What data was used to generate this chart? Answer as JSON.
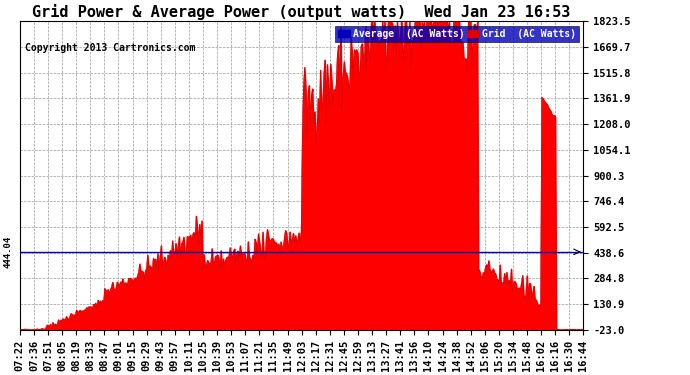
{
  "title": "Grid Power & Average Power (output watts)  Wed Jan 23 16:53",
  "copyright": "Copyright 2013 Cartronics.com",
  "ylabel_values": [
    1823.5,
    1669.7,
    1515.8,
    1361.9,
    1208.0,
    1054.1,
    900.3,
    746.4,
    592.5,
    438.6,
    284.8,
    130.9,
    -23.0
  ],
  "ymin": -23.0,
  "ymax": 1823.5,
  "avg_line_y": 444.04,
  "avg_line_label": "444.04",
  "legend_average_label": "Average  (AC Watts)",
  "legend_grid_label": "Grid  (AC Watts)",
  "legend_avg_color": "#0000bb",
  "legend_grid_color": "#dd0000",
  "fill_color": "#ff0000",
  "line_color": "#cc0000",
  "avg_line_color": "#0000bb",
  "background_color": "#ffffff",
  "grid_color": "#999999",
  "title_fontsize": 11,
  "tick_fontsize": 7.5,
  "copyright_fontsize": 7,
  "x_tick_labels": [
    "07:22",
    "07:36",
    "07:51",
    "08:05",
    "08:19",
    "08:33",
    "08:47",
    "09:01",
    "09:15",
    "09:29",
    "09:43",
    "09:57",
    "10:11",
    "10:25",
    "10:39",
    "10:53",
    "11:07",
    "11:21",
    "11:35",
    "11:49",
    "12:03",
    "12:17",
    "12:31",
    "12:45",
    "12:59",
    "13:13",
    "13:27",
    "13:41",
    "13:56",
    "14:10",
    "14:24",
    "14:38",
    "14:52",
    "15:06",
    "15:20",
    "15:34",
    "15:48",
    "16:02",
    "16:16",
    "16:30",
    "16:44"
  ]
}
